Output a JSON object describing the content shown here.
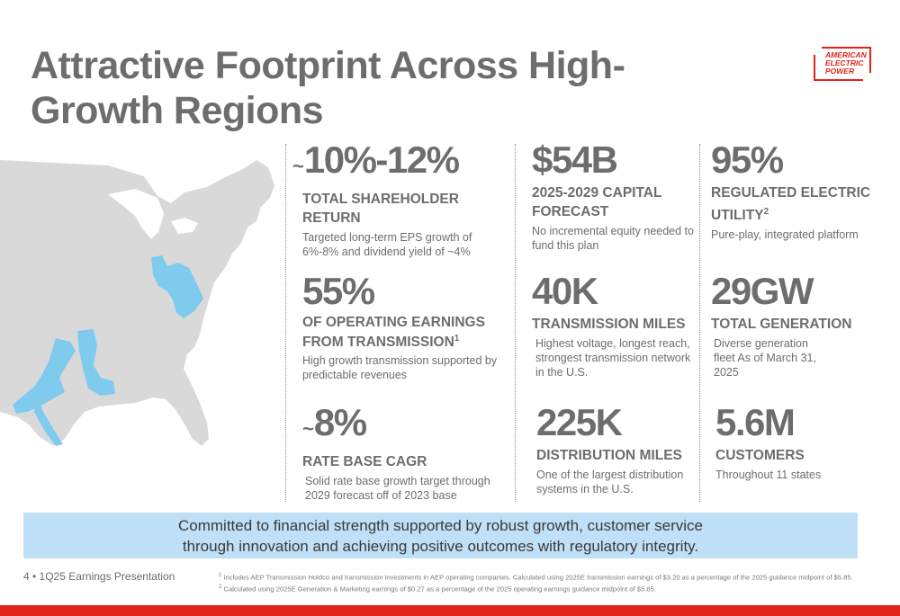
{
  "title": "Attractive Footprint Across High-Growth Regions",
  "logo": {
    "line1": "AMERICAN",
    "line2": "ELECTRIC",
    "line3": "POWER",
    "color": "#e2231a"
  },
  "map": {
    "description_color": "#d6d6d6",
    "service_area_color": "#7fcbee"
  },
  "stats": [
    {
      "prefix": "~",
      "value": "10%-12%",
      "label": "TOTAL SHAREHOLDER RETURN",
      "sup": "",
      "desc": "Targeted long-term EPS growth of 6%-8% and dividend yield of ~4%"
    },
    {
      "prefix": "",
      "value": "$54B",
      "label": "2025-2029 CAPITAL FORECAST",
      "sup": "",
      "desc": "No incremental equity needed to fund this plan"
    },
    {
      "prefix": "",
      "value": "95%",
      "label": "REGULATED ELECTRIC UTILITY",
      "sup": "2",
      "desc": "Pure-play, integrated platform"
    },
    {
      "prefix": "",
      "value": "55%",
      "label": "OF OPERATING EARNINGS FROM TRANSMISSION",
      "sup": "1",
      "desc": "High growth transmission supported by predictable revenues"
    },
    {
      "prefix": "",
      "value": "40K",
      "label": "TRANSMISSION MILES",
      "sup": "",
      "desc": "Highest voltage, longest reach, strongest transmission network in the U.S."
    },
    {
      "prefix": "",
      "value": "29GW",
      "label": "TOTAL GENERATION",
      "sup": "",
      "desc": "Diverse generation fleet As of March 31, 2025"
    },
    {
      "prefix": "~",
      "value": "8%",
      "label": "RATE BASE CAGR",
      "sup": "",
      "desc": "Solid rate base growth target through 2029 forecast off of 2023 base"
    },
    {
      "prefix": "",
      "value": "225K",
      "label": "DISTRIBUTION MILES",
      "sup": "",
      "desc": "One of the largest distribution systems in the U.S."
    },
    {
      "prefix": "",
      "value": "5.6M",
      "label": "CUSTOMERS",
      "sup": "",
      "desc": "Throughout 11 states"
    }
  ],
  "banner": "Committed to financial strength supported by robust growth, customer service through innovation and achieving positive outcomes with regulatory integrity.",
  "footer": {
    "page": "4 • 1Q25 Earnings Presentation",
    "note1_mark": "1",
    "note1": "Includes AEP Transmission Holdco and transmission investments in AEP operating companies.  Calculated using 2025E transmission earnings of $3.20 as a percentage of the 2025 guidance midpoint of $5.85.",
    "note2_mark": "2",
    "note2": "Calculated using 2025E Generation & Marketing earnings of $0.27 as a percentage of the 2025 operating earnings guidance midpoint of $5.85."
  }
}
